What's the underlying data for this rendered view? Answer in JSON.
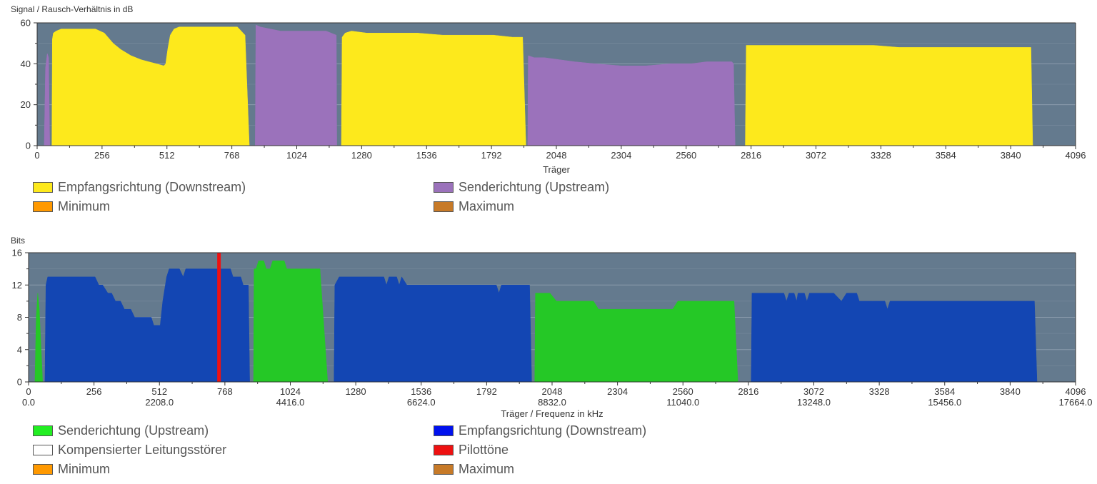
{
  "colors": {
    "plot_bg": "#647a8e",
    "grid": "#8a9aac",
    "downstream_snr": "#fde91c",
    "upstream_snr": "#9b72bb",
    "downstream_bits": "#1346b3",
    "upstream_bits": "#25c826",
    "pilot": "#ee1111",
    "minimum": "#ff9900",
    "maximum": "#c77a28",
    "compensated": "#ffffff",
    "legend_upstream_bits": "#22ee22",
    "legend_downstream_bits": "#0011ee"
  },
  "chart_data": [
    {
      "type": "area",
      "title": "",
      "ylabel": "Signal / Rausch-Verhältnis in dB",
      "xlabel": "Träger",
      "xlim": [
        0,
        4096
      ],
      "ylim": [
        0,
        60
      ],
      "yticks": [
        0,
        20,
        40,
        60
      ],
      "xticks": [
        0,
        256,
        512,
        768,
        1024,
        1280,
        1536,
        1792,
        2048,
        2304,
        2560,
        2816,
        3072,
        3328,
        3584,
        3840,
        4096
      ],
      "grid": true,
      "legend_position": "bottom",
      "series": [
        {
          "name": "Senderichtung (Upstream)",
          "color_key": "upstream_snr",
          "segments": [
            [
              [
                28,
                0
              ],
              [
                33,
                38
              ],
              [
                40,
                45
              ],
              [
                45,
                43
              ],
              [
                50,
                0
              ]
            ],
            [
              [
                860,
                0
              ],
              [
                863,
                59
              ],
              [
                880,
                58
              ],
              [
                920,
                57
              ],
              [
                960,
                56
              ],
              [
                1010,
                56
              ],
              [
                1060,
                56
              ],
              [
                1100,
                56
              ],
              [
                1140,
                56
              ],
              [
                1180,
                54
              ],
              [
                1182,
                0
              ]
            ],
            [
              [
                1935,
                0
              ],
              [
                1937,
                44
              ],
              [
                1960,
                43
              ],
              [
                2000,
                43
              ],
              [
                2060,
                42
              ],
              [
                2120,
                41
              ],
              [
                2200,
                40
              ],
              [
                2304,
                39
              ],
              [
                2400,
                39
              ],
              [
                2500,
                40
              ],
              [
                2580,
                40
              ],
              [
                2640,
                41
              ],
              [
                2700,
                41
              ],
              [
                2740,
                41
              ],
              [
                2747,
                40
              ],
              [
                2753,
                0
              ]
            ]
          ]
        },
        {
          "name": "Empfangsrichtung (Downstream)",
          "color_key": "downstream_snr",
          "segments": [
            [
              [
                58,
                0
              ],
              [
                60,
                52
              ],
              [
                64,
                55
              ],
              [
                75,
                56
              ],
              [
                95,
                57
              ],
              [
                120,
                57
              ],
              [
                230,
                57
              ],
              [
                265,
                55
              ],
              [
                300,
                50
              ],
              [
                330,
                47
              ],
              [
                370,
                44
              ],
              [
                410,
                42
              ],
              [
                440,
                41
              ],
              [
                470,
                40
              ],
              [
                500,
                39
              ],
              [
                507,
                40
              ],
              [
                515,
                47
              ],
              [
                525,
                54
              ],
              [
                540,
                57
              ],
              [
                560,
                58
              ],
              [
                620,
                58
              ],
              [
                700,
                58
              ],
              [
                760,
                58
              ],
              [
                790,
                58
              ],
              [
                820,
                54
              ],
              [
                837,
                0
              ]
            ],
            [
              [
                1200,
                0
              ],
              [
                1203,
                53
              ],
              [
                1215,
                55
              ],
              [
                1240,
                56
              ],
              [
                1300,
                55
              ],
              [
                1400,
                55
              ],
              [
                1500,
                55
              ],
              [
                1600,
                54
              ],
              [
                1700,
                54
              ],
              [
                1800,
                54
              ],
              [
                1875,
                53
              ],
              [
                1915,
                53
              ],
              [
                1928,
                0
              ]
            ],
            [
              [
                2793,
                0
              ],
              [
                2797,
                49
              ],
              [
                3000,
                49
              ],
              [
                3200,
                49
              ],
              [
                3300,
                49
              ],
              [
                3400,
                48
              ],
              [
                3600,
                48
              ],
              [
                3800,
                48
              ],
              [
                3865,
                48
              ],
              [
                3920,
                48
              ],
              [
                3927,
                0
              ]
            ]
          ]
        }
      ],
      "legend": [
        {
          "label": "Empfangsrichtung (Downstream)",
          "color_key": "downstream_snr"
        },
        {
          "label": "Senderichtung (Upstream)",
          "color_key": "upstream_snr"
        },
        {
          "label": "Minimum",
          "color_key": "minimum"
        },
        {
          "label": "Maximum",
          "color_key": "maximum"
        }
      ]
    },
    {
      "type": "area",
      "title": "",
      "ylabel": "Bits",
      "xlabel": "Träger / Frequenz in kHz",
      "xlim": [
        0,
        4096
      ],
      "ylim": [
        0,
        16
      ],
      "yticks": [
        0,
        4,
        8,
        12,
        16
      ],
      "xticks": [
        0,
        256,
        512,
        768,
        1024,
        1280,
        1536,
        1792,
        2048,
        2304,
        2560,
        2816,
        3072,
        3328,
        3584,
        3840,
        4096
      ],
      "xticks_secondary": [
        "0.0",
        "2208.0",
        "4416.0",
        "6624.0",
        "8832.0",
        "11040.0",
        "13248.0",
        "15456.0",
        "17664.0"
      ],
      "grid": true,
      "legend_position": "bottom",
      "pilot_tones": [
        745
      ],
      "series": [
        {
          "name": "Senderichtung (Upstream)",
          "color_key": "upstream_bits",
          "segments": [
            [
              [
                25,
                0
              ],
              [
                30,
                8
              ],
              [
                36,
                11
              ],
              [
                42,
                9
              ],
              [
                55,
                0
              ]
            ],
            [
              [
                880,
                0
              ],
              [
                882,
                14
              ],
              [
                890,
                14
              ],
              [
                900,
                15
              ],
              [
                920,
                15
              ],
              [
                930,
                14
              ],
              [
                945,
                14
              ],
              [
                955,
                15
              ],
              [
                1000,
                15
              ],
              [
                1010,
                14
              ],
              [
                1040,
                14
              ],
              [
                1080,
                14
              ],
              [
                1120,
                14
              ],
              [
                1140,
                14
              ],
              [
                1170,
                0
              ]
            ],
            [
              [
                1980,
                0
              ],
              [
                1983,
                11
              ],
              [
                2040,
                11
              ],
              [
                2065,
                10
              ],
              [
                2100,
                10
              ],
              [
                2150,
                10
              ],
              [
                2210,
                10
              ],
              [
                2230,
                9
              ],
              [
                2304,
                9
              ],
              [
                2420,
                9
              ],
              [
                2520,
                9
              ],
              [
                2540,
                10
              ],
              [
                2600,
                10
              ],
              [
                2700,
                10
              ],
              [
                2760,
                10
              ],
              [
                2775,
                0
              ]
            ]
          ]
        },
        {
          "name": "Empfangsrichtung (Downstream)",
          "color_key": "downstream_bits",
          "segments": [
            [
              [
                64,
                0
              ],
              [
                68,
                12
              ],
              [
                75,
                13
              ],
              [
                150,
                13
              ],
              [
                200,
                13
              ],
              [
                260,
                13
              ],
              [
                275,
                12
              ],
              [
                290,
                12
              ],
              [
                310,
                11
              ],
              [
                325,
                11
              ],
              [
                340,
                10
              ],
              [
                360,
                10
              ],
              [
                375,
                9
              ],
              [
                400,
                9
              ],
              [
                415,
                8
              ],
              [
                480,
                8
              ],
              [
                490,
                7
              ],
              [
                515,
                7
              ],
              [
                525,
                10
              ],
              [
                540,
                13
              ],
              [
                550,
                14
              ],
              [
                590,
                14
              ],
              [
                605,
                13
              ],
              [
                615,
                14
              ],
              [
                660,
                14
              ],
              [
                700,
                14
              ],
              [
                750,
                14
              ],
              [
                790,
                14
              ],
              [
                800,
                13
              ],
              [
                830,
                13
              ],
              [
                840,
                12
              ],
              [
                860,
                12
              ],
              [
                865,
                0
              ]
            ],
            [
              [
                1195,
                0
              ],
              [
                1198,
                12
              ],
              [
                1215,
                13
              ],
              [
                1300,
                13
              ],
              [
                1390,
                13
              ],
              [
                1400,
                12
              ],
              [
                1410,
                13
              ],
              [
                1440,
                13
              ],
              [
                1450,
                12
              ],
              [
                1460,
                13
              ],
              [
                1480,
                12
              ],
              [
                1560,
                12
              ],
              [
                1700,
                12
              ],
              [
                1830,
                12
              ],
              [
                1840,
                11
              ],
              [
                1850,
                12
              ],
              [
                1960,
                12
              ],
              [
                1968,
                0
              ]
            ],
            [
              [
                2827,
                0
              ],
              [
                2830,
                11
              ],
              [
                2900,
                11
              ],
              [
                2955,
                11
              ],
              [
                2965,
                10
              ],
              [
                2975,
                11
              ],
              [
                2995,
                11
              ],
              [
                3005,
                10
              ],
              [
                3010,
                11
              ],
              [
                3035,
                11
              ],
              [
                3045,
                10
              ],
              [
                3055,
                11
              ],
              [
                3100,
                11
              ],
              [
                3150,
                11
              ],
              [
                3180,
                10
              ],
              [
                3200,
                11
              ],
              [
                3240,
                11
              ],
              [
                3250,
                10
              ],
              [
                3300,
                10
              ],
              [
                3350,
                10
              ],
              [
                3360,
                9
              ],
              [
                3370,
                10
              ],
              [
                3500,
                10
              ],
              [
                3700,
                10
              ],
              [
                3900,
                10
              ],
              [
                3935,
                10
              ],
              [
                3945,
                0
              ]
            ]
          ]
        }
      ],
      "legend": [
        {
          "label": "Senderichtung (Upstream)",
          "color_key": "legend_upstream_bits"
        },
        {
          "label": "Empfangsrichtung (Downstream)",
          "color_key": "legend_downstream_bits"
        },
        {
          "label": "Kompensierter Leitungsstörer",
          "color_key": "compensated"
        },
        {
          "label": "Pilottöne",
          "color_key": "pilot"
        },
        {
          "label": "Minimum",
          "color_key": "minimum"
        },
        {
          "label": "Maximum",
          "color_key": "maximum"
        }
      ]
    }
  ]
}
